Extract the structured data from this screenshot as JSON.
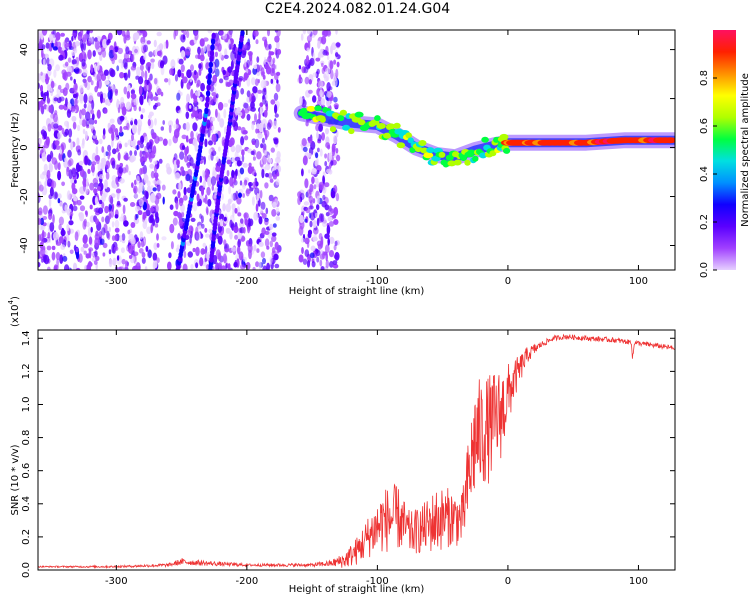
{
  "title": "C2E4.2024.082.01.24.G04",
  "chart_data": [
    {
      "type": "heatmap",
      "xlabel": "Height of straight line (km)",
      "ylabel": "Frequency (Hz)",
      "xlim": [
        -360,
        128
      ],
      "ylim": [
        -50,
        48
      ],
      "xticks": [
        -300,
        -200,
        -100,
        0,
        100
      ],
      "yticks": [
        -40,
        -20,
        0,
        20,
        40
      ],
      "colorbar": {
        "label": "Normalized spectral amplitude",
        "range": [
          0.0,
          1.0
        ],
        "ticks": [
          0.0,
          0.2,
          0.4,
          0.6,
          0.8
        ],
        "tick_labels": [
          "0.0",
          "0.2",
          "0.4",
          "0.6",
          "0.8"
        ],
        "colormap": [
          "#e6d0ff",
          "#a040ff",
          "#5a00ff",
          "#1000ff",
          "#0090ff",
          "#00e0e0",
          "#00ff40",
          "#b0ff00",
          "#ffff00",
          "#ff9000",
          "#ff2000",
          "#ff1060"
        ]
      },
      "features": [
        {
          "name": "noise field",
          "x_range": [
            -360,
            -130
          ],
          "y_range": [
            -50,
            48
          ],
          "level": 0.1
        },
        {
          "name": "streak",
          "points": [
            [
              -253,
              -50
            ],
            [
              -245,
              -28
            ],
            [
              -238,
              -8
            ],
            [
              -231,
              15
            ],
            [
              -225,
              48
            ]
          ],
          "level": 0.25
        },
        {
          "name": "streak",
          "points": [
            [
              -228,
              -50
            ],
            [
              -224,
              -30
            ],
            [
              -219,
              -10
            ],
            [
              -213,
              10
            ],
            [
              -208,
              30
            ],
            [
              -203,
              48
            ]
          ],
          "level": 0.22
        },
        {
          "name": "signal track",
          "points": [
            [
              -158,
              14
            ],
            [
              -140,
              12
            ],
            [
              -120,
              10
            ],
            [
              -100,
              9
            ],
            [
              -85,
              5
            ],
            [
              -70,
              0
            ],
            [
              -55,
              -3
            ],
            [
              -40,
              -4
            ],
            [
              -25,
              -1
            ],
            [
              -10,
              1
            ],
            [
              0,
              2
            ],
            [
              20,
              2
            ],
            [
              60,
              2
            ],
            [
              90,
              3
            ],
            [
              128,
              3
            ]
          ],
          "level": 0.75
        }
      ]
    },
    {
      "type": "line",
      "xlabel": "Height of straight line (km)",
      "ylabel": "SNR (10 * v/v)",
      "y_multiplier": "(x10",
      "y_multiplier_exp": "4",
      "y_multiplier_close": ")",
      "xlim": [
        -360,
        128
      ],
      "ylim": [
        0.0,
        1.45
      ],
      "xticks": [
        -300,
        -200,
        -100,
        0,
        100
      ],
      "yticks": [
        0.0,
        0.2,
        0.4,
        0.6,
        0.8,
        1.0,
        1.2,
        1.4
      ],
      "ytick_labels": [
        "0.0",
        "0.2",
        "0.4",
        "0.6",
        "0.8",
        "1.0",
        "1.2",
        "1.4"
      ],
      "series": [
        {
          "color": "#ee3333",
          "x": [
            -360,
            -300,
            -260,
            -250,
            -230,
            -200,
            -150,
            -135,
            -125,
            -115,
            -105,
            -95,
            -85,
            -75,
            -65,
            -55,
            -45,
            -35,
            -30,
            -25,
            -15,
            -5,
            5,
            15,
            25,
            35,
            45,
            60,
            80,
            100,
            128
          ],
          "y": [
            0.02,
            0.02,
            0.03,
            0.05,
            0.04,
            0.03,
            0.03,
            0.04,
            0.06,
            0.12,
            0.22,
            0.3,
            0.32,
            0.22,
            0.25,
            0.3,
            0.32,
            0.3,
            0.55,
            0.8,
            0.85,
            0.95,
            1.15,
            1.3,
            1.36,
            1.4,
            1.41,
            1.4,
            1.39,
            1.37,
            1.34
          ],
          "noise": [
            0.004,
            0.006,
            0.01,
            0.02,
            0.015,
            0.008,
            0.01,
            0.02,
            0.05,
            0.09,
            0.14,
            0.2,
            0.2,
            0.13,
            0.15,
            0.2,
            0.18,
            0.16,
            0.28,
            0.35,
            0.33,
            0.28,
            0.12,
            0.05,
            0.02,
            0.015,
            0.015,
            0.015,
            0.015,
            0.015,
            0.015
          ]
        }
      ]
    }
  ]
}
